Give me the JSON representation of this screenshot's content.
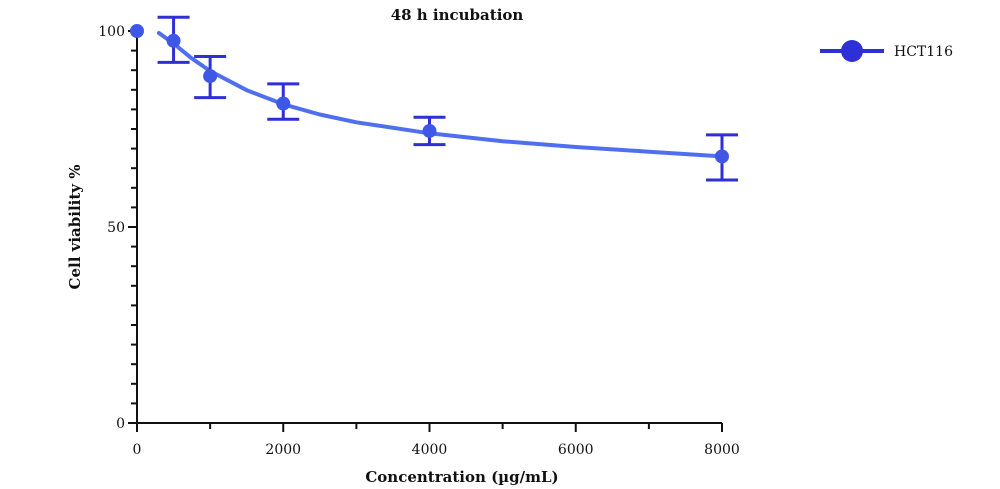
{
  "chart_data": {
    "type": "scatter",
    "title": "48 h incubation",
    "xlabel": "Concentration (µg/mL)",
    "ylabel": "Cell viability %",
    "xlim": [
      0,
      8000
    ],
    "ylim": [
      0,
      100
    ],
    "x_ticks": [
      0,
      2000,
      4000,
      6000,
      8000
    ],
    "x_tick_labels": [
      "0",
      "2000",
      "4000",
      "6000",
      "8000"
    ],
    "y_ticks": [
      0,
      50,
      100
    ],
    "y_tick_labels": [
      "0",
      "50",
      "100"
    ],
    "grid": false,
    "legend_position": "top-right",
    "color": "#2f2fd6",
    "curve_color": "#4f6ff0",
    "series": [
      {
        "name": "HCT116",
        "x": [
          0,
          500,
          1000,
          2000,
          4000,
          8000
        ],
        "y": [
          100,
          97.5,
          88.5,
          81.5,
          74.5,
          68
        ],
        "err_high": [
          null,
          103.5,
          93.5,
          86.5,
          78,
          73.5
        ],
        "err_low": [
          null,
          92,
          83,
          77.5,
          71,
          62
        ],
        "fit_x": [
          300,
          500,
          750,
          1000,
          1500,
          2000,
          2500,
          3000,
          4000,
          5000,
          6000,
          7000,
          8000
        ],
        "fit_y": [
          99.5,
          96.8,
          93.0,
          89.8,
          84.9,
          81.3,
          78.7,
          76.7,
          73.9,
          71.9,
          70.4,
          69.2,
          68.0
        ]
      }
    ]
  }
}
